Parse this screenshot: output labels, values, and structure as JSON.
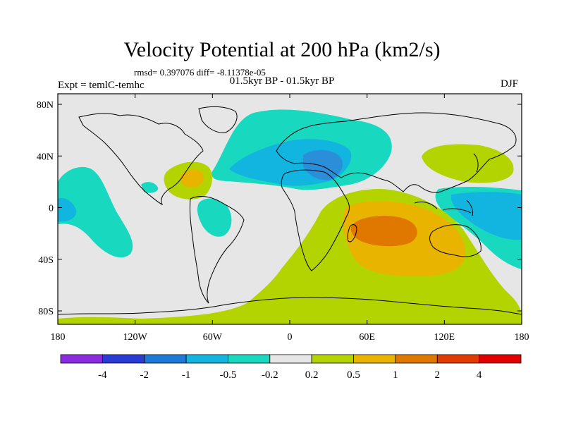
{
  "header": {
    "title": "Velocity Potential at 200 hPa (km2/s)",
    "stats": "rmsd= 0.397076 diff= -8.11378e-05",
    "expt": "Expt = temlC-temhc",
    "period": "01.5kyr BP - 01.5kyr BP",
    "season": "DJF"
  },
  "map": {
    "xticks": [
      "180",
      "120W",
      "60W",
      "0",
      "60E",
      "120E",
      "180"
    ],
    "yticks": [
      "80N",
      "40N",
      "0",
      "40S",
      "80S"
    ]
  },
  "colorbar": {
    "labels": [
      "-4",
      "-2",
      "-1",
      "-0.5",
      "-0.2",
      "0.2",
      "0.5",
      "1",
      "2",
      "4"
    ],
    "colors": [
      "#8a2be2",
      "#2a3bd4",
      "#1e78d8",
      "#12b4e0",
      "#18d8c0",
      "#e6e6e6",
      "#b4d400",
      "#e8b400",
      "#e07800",
      "#e03c00",
      "#e00000"
    ]
  },
  "colors": {
    "ocean_bg": "#e6e6e6",
    "neg_weak": "#18d8c0",
    "neg_mod": "#12b4e0",
    "pos_weak": "#b4d400",
    "pos_mod": "#e8b400",
    "pos_strong": "#e07800"
  }
}
